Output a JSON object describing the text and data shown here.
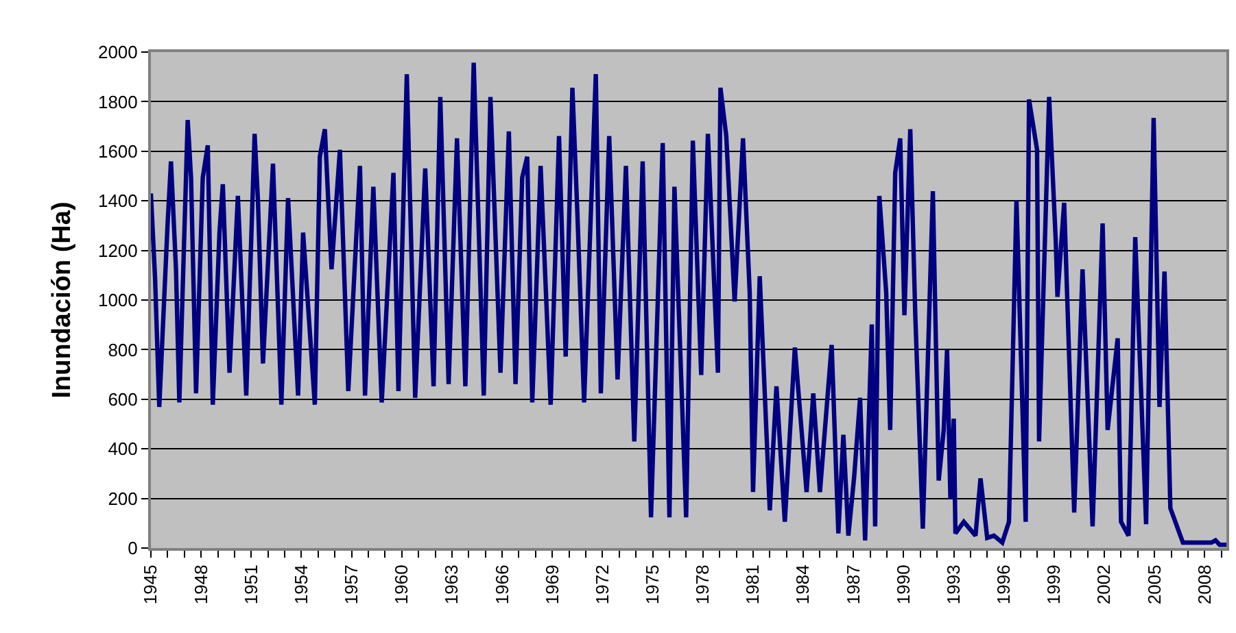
{
  "chart_data": {
    "type": "line",
    "ylabel": "Inundación (Ha)",
    "grid": "y",
    "marker": "none",
    "line_style": "solid",
    "xlim": [
      1945,
      2009.3
    ],
    "ylim": [
      0,
      2000
    ],
    "yticks": [
      0,
      200,
      400,
      600,
      800,
      1000,
      1200,
      1400,
      1600,
      1800,
      2000
    ],
    "xticks": [
      1945,
      {
        "value": 1946,
        "label": null
      },
      {
        "value": 1947,
        "label": null
      },
      1948,
      {
        "value": 1949,
        "label": null
      },
      {
        "value": 1950,
        "label": null
      },
      1951,
      {
        "value": 1952,
        "label": null
      },
      {
        "value": 1953,
        "label": null
      },
      1954,
      {
        "value": 1955,
        "label": null
      },
      {
        "value": 1956,
        "label": null
      },
      1957,
      {
        "value": 1958,
        "label": null
      },
      {
        "value": 1959,
        "label": null
      },
      1960,
      {
        "value": 1961,
        "label": null
      },
      {
        "value": 1962,
        "label": null
      },
      1963,
      {
        "value": 1964,
        "label": null
      },
      {
        "value": 1965,
        "label": null
      },
      1966,
      {
        "value": 1967,
        "label": null
      },
      {
        "value": 1968,
        "label": null
      },
      1969,
      {
        "value": 1970,
        "label": null
      },
      {
        "value": 1971,
        "label": null
      },
      1972,
      {
        "value": 1973,
        "label": null
      },
      {
        "value": 1974,
        "label": null
      },
      1975,
      {
        "value": 1976,
        "label": null
      },
      {
        "value": 1977,
        "label": null
      },
      1978,
      {
        "value": 1979,
        "label": null
      },
      {
        "value": 1980,
        "label": null
      },
      1981,
      {
        "value": 1982,
        "label": null
      },
      {
        "value": 1983,
        "label": null
      },
      1984,
      {
        "value": 1985,
        "label": null
      },
      {
        "value": 1986,
        "label": null
      },
      1987,
      {
        "value": 1988,
        "label": null
      },
      {
        "value": 1989,
        "label": null
      },
      1990,
      {
        "value": 1991,
        "label": null
      },
      {
        "value": 1992,
        "label": null
      },
      1993,
      {
        "value": 1994,
        "label": null
      },
      {
        "value": 1995,
        "label": null
      },
      1996,
      {
        "value": 1997,
        "label": null
      },
      {
        "value": 1998,
        "label": null
      },
      1999,
      {
        "value": 2000,
        "label": null
      },
      {
        "value": 2001,
        "label": null
      },
      2002,
      {
        "value": 2003,
        "label": null
      },
      {
        "value": 2004,
        "label": null
      },
      2005,
      {
        "value": 2006,
        "label": null
      },
      {
        "value": 2007,
        "label": null
      },
      2008,
      {
        "value": 2009,
        "label": null
      }
    ],
    "series": [
      {
        "color": "#000080",
        "x": [
          1945.0,
          1945.25,
          1945.5,
          1946.0,
          1946.2,
          1946.5,
          1946.7,
          1947.2,
          1947.4,
          1947.7,
          1948.1,
          1948.4,
          1948.7,
          1949.1,
          1949.3,
          1949.7,
          1950.2,
          1950.7,
          1951.2,
          1951.4,
          1951.7,
          1952.3,
          1952.8,
          1953.2,
          1953.8,
          1954.1,
          1954.8,
          1955.1,
          1955.4,
          1955.8,
          1956.3,
          1956.8,
          1957.5,
          1957.8,
          1958.3,
          1958.8,
          1959.5,
          1959.8,
          1960.3,
          1960.8,
          1961.4,
          1961.9,
          1962.3,
          1962.8,
          1963.3,
          1963.8,
          1964.3,
          1964.9,
          1965.3,
          1965.9,
          1966.4,
          1966.8,
          1967.2,
          1967.5,
          1967.8,
          1968.3,
          1968.9,
          1969.4,
          1969.8,
          1970.2,
          1970.5,
          1970.9,
          1971.6,
          1971.9,
          1972.4,
          1972.9,
          1973.4,
          1973.9,
          1974.4,
          1974.9,
          1975.6,
          1976.0,
          1976.3,
          1977.0,
          1977.4,
          1977.9,
          1978.3,
          1978.9,
          1979.05,
          1979.4,
          1979.9,
          1980.4,
          1980.8,
          1981.0,
          1981.4,
          1982.0,
          1982.4,
          1982.9,
          1983.5,
          1984.2,
          1984.6,
          1985.0,
          1985.7,
          1986.1,
          1986.4,
          1986.7,
          1987.05,
          1987.4,
          1987.7,
          1988.1,
          1988.3,
          1988.55,
          1988.96,
          1989.2,
          1989.5,
          1989.8,
          1990.05,
          1990.4,
          1990.7,
          1991.15,
          1991.75,
          1992.1,
          1992.4,
          1992.6,
          1992.8,
          1993.0,
          1993.1,
          1993.6,
          1994.3,
          1994.6,
          1995.0,
          1995.4,
          1995.9,
          1996.3,
          1996.75,
          1997.3,
          1997.5,
          1997.98,
          1998.1,
          1998.7,
          1999.1,
          1999.2,
          1999.6,
          2000.2,
          2000.7,
          2001.3,
          2001.9,
          2002.2,
          2002.8,
          2003.0,
          2003.45,
          2003.85,
          2004.5,
          2004.95,
          2005.3,
          2005.6,
          2005.95,
          2006.7,
          2008.4,
          2008.65,
          2008.9,
          2009.3
        ],
        "values": [
          1430,
          1087,
          569,
          1309,
          1559,
          1124,
          587,
          1726,
          1494,
          624,
          1494,
          1624,
          578,
          1272,
          1467,
          707,
          1420,
          615,
          1670,
          1402,
          744,
          1550,
          578,
          1411,
          615,
          1272,
          578,
          1578,
          1689,
          1124,
          1606,
          633,
          1541,
          615,
          1457,
          587,
          1513,
          633,
          1911,
          606,
          1531,
          652,
          1819,
          661,
          1652,
          652,
          1957,
          615,
          1819,
          707,
          1680,
          661,
          1494,
          1578,
          587,
          1541,
          578,
          1661,
          772,
          1856,
          1346,
          587,
          1911,
          624,
          1661,
          680,
          1541,
          430,
          1559,
          124,
          1633,
          124,
          1457,
          124,
          1643,
          698,
          1670,
          707,
          1856,
          1661,
          994,
          1652,
          1031,
          226,
          1096,
          152,
          652,
          106,
          809,
          226,
          624,
          226,
          819,
          59,
          457,
          50,
          291,
          606,
          31,
          902,
          87,
          1420,
          1031,
          476,
          1513,
          1652,
          939,
          1689,
          939,
          78,
          1439,
          272,
          476,
          800,
          198,
          522,
          59,
          106,
          50,
          281,
          41,
          50,
          22,
          106,
          1402,
          106,
          1809,
          1606,
          430,
          1819,
          1235,
          1013,
          1392,
          143,
          1124,
          87,
          1309,
          476,
          846,
          106,
          50,
          1254,
          96,
          1735,
          569,
          1115,
          161,
          22,
          22,
          31,
          13,
          13
        ]
      }
    ]
  }
}
